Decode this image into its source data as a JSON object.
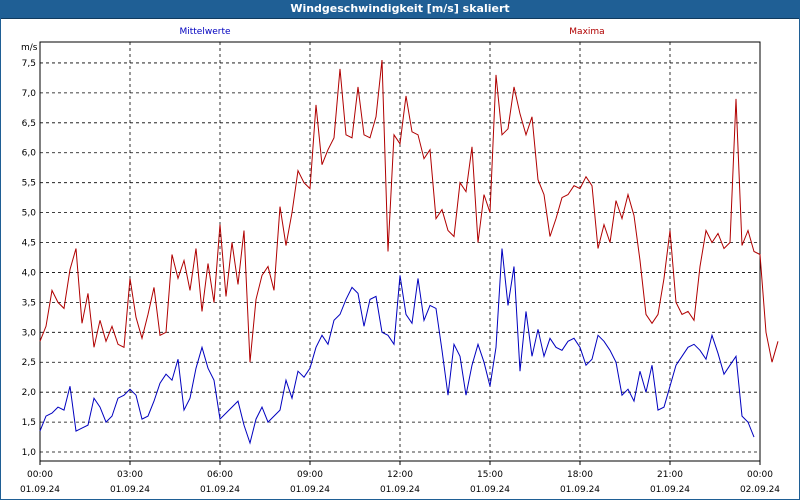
{
  "window": {
    "title": "Windgeschwindigkeit [m/s] skaliert"
  },
  "colors": {
    "mean": "#0000bf",
    "max": "#b00000",
    "titlebar": "#1f5f95"
  },
  "chart_data": {
    "type": "line",
    "title": "Windgeschwindigkeit [m/s] skaliert",
    "ylabel": "m/s",
    "ylim": [
      0.85,
      7.85
    ],
    "yticks": [
      1.0,
      1.5,
      2.0,
      2.5,
      3.0,
      3.5,
      4.0,
      4.5,
      5.0,
      5.5,
      6.0,
      6.5,
      7.0,
      7.5
    ],
    "ytick_labels": [
      "1,0",
      "1,5",
      "2,0",
      "2,5",
      "3,0",
      "3,5",
      "4,0",
      "4,5",
      "5,0",
      "5,5",
      "6,0",
      "6,5",
      "7,0",
      "7,5"
    ],
    "xlim_hours": [
      0,
      24
    ],
    "x_ticks": [
      {
        "h": 0,
        "time": "00:00",
        "date": "01.09.24"
      },
      {
        "h": 3,
        "time": "03:00",
        "date": "01.09.24"
      },
      {
        "h": 6,
        "time": "06:00",
        "date": "01.09.24"
      },
      {
        "h": 9,
        "time": "09:00",
        "date": "01.09.24"
      },
      {
        "h": 12,
        "time": "12:00",
        "date": "01.09.24"
      },
      {
        "h": 15,
        "time": "15:00",
        "date": "01.09.24"
      },
      {
        "h": 18,
        "time": "18:00",
        "date": "01.09.24"
      },
      {
        "h": 21,
        "time": "21:00",
        "date": "01.09.24"
      },
      {
        "h": 24,
        "time": "00:00",
        "date": "02.09.24"
      }
    ],
    "grid": true,
    "series": [
      {
        "name": "Mittelwerte",
        "points": [
          [
            0,
            1.35
          ],
          [
            0.2,
            1.6
          ],
          [
            0.4,
            1.65
          ],
          [
            0.6,
            1.75
          ],
          [
            0.8,
            1.7
          ],
          [
            1.0,
            2.1
          ],
          [
            1.2,
            1.35
          ],
          [
            1.4,
            1.4
          ],
          [
            1.6,
            1.45
          ],
          [
            1.8,
            1.9
          ],
          [
            2.0,
            1.75
          ],
          [
            2.2,
            1.5
          ],
          [
            2.4,
            1.6
          ],
          [
            2.6,
            1.9
          ],
          [
            2.8,
            1.95
          ],
          [
            3.0,
            2.05
          ],
          [
            3.2,
            1.95
          ],
          [
            3.4,
            1.55
          ],
          [
            3.6,
            1.6
          ],
          [
            3.8,
            1.85
          ],
          [
            4.0,
            2.15
          ],
          [
            4.2,
            2.3
          ],
          [
            4.4,
            2.2
          ],
          [
            4.6,
            2.55
          ],
          [
            4.8,
            1.7
          ],
          [
            5.0,
            1.9
          ],
          [
            5.2,
            2.4
          ],
          [
            5.4,
            2.75
          ],
          [
            5.6,
            2.4
          ],
          [
            5.8,
            2.2
          ],
          [
            6.0,
            1.55
          ],
          [
            6.2,
            1.65
          ],
          [
            6.4,
            1.75
          ],
          [
            6.6,
            1.85
          ],
          [
            6.8,
            1.45
          ],
          [
            7.0,
            1.15
          ],
          [
            7.2,
            1.55
          ],
          [
            7.4,
            1.75
          ],
          [
            7.6,
            1.5
          ],
          [
            7.8,
            1.6
          ],
          [
            8.0,
            1.7
          ],
          [
            8.2,
            2.2
          ],
          [
            8.4,
            1.9
          ],
          [
            8.6,
            2.35
          ],
          [
            8.8,
            2.25
          ],
          [
            9.0,
            2.4
          ],
          [
            9.2,
            2.75
          ],
          [
            9.4,
            2.95
          ],
          [
            9.6,
            2.8
          ],
          [
            9.8,
            3.2
          ],
          [
            10.0,
            3.3
          ],
          [
            10.2,
            3.55
          ],
          [
            10.4,
            3.75
          ],
          [
            10.6,
            3.65
          ],
          [
            10.8,
            3.1
          ],
          [
            11.0,
            3.55
          ],
          [
            11.2,
            3.6
          ],
          [
            11.4,
            3.0
          ],
          [
            11.6,
            2.95
          ],
          [
            11.8,
            2.8
          ],
          [
            12.0,
            3.95
          ],
          [
            12.2,
            3.3
          ],
          [
            12.4,
            3.15
          ],
          [
            12.6,
            3.9
          ],
          [
            12.8,
            3.2
          ],
          [
            13.0,
            3.45
          ],
          [
            13.2,
            3.4
          ],
          [
            13.4,
            2.7
          ],
          [
            13.6,
            1.95
          ],
          [
            13.8,
            2.8
          ],
          [
            14.0,
            2.6
          ],
          [
            14.2,
            1.95
          ],
          [
            14.4,
            2.45
          ],
          [
            14.6,
            2.8
          ],
          [
            14.8,
            2.5
          ],
          [
            15.0,
            2.1
          ],
          [
            15.2,
            2.75
          ],
          [
            15.4,
            4.4
          ],
          [
            15.6,
            3.45
          ],
          [
            15.8,
            4.1
          ],
          [
            16.0,
            2.35
          ],
          [
            16.2,
            3.35
          ],
          [
            16.4,
            2.6
          ],
          [
            16.6,
            3.05
          ],
          [
            16.8,
            2.6
          ],
          [
            17.0,
            2.9
          ],
          [
            17.2,
            2.75
          ],
          [
            17.4,
            2.7
          ],
          [
            17.6,
            2.85
          ],
          [
            17.8,
            2.9
          ],
          [
            18.0,
            2.75
          ],
          [
            18.2,
            2.45
          ],
          [
            18.4,
            2.55
          ],
          [
            18.6,
            2.95
          ],
          [
            18.8,
            2.85
          ],
          [
            19.0,
            2.7
          ],
          [
            19.2,
            2.5
          ],
          [
            19.4,
            1.95
          ],
          [
            19.6,
            2.05
          ],
          [
            19.8,
            1.85
          ],
          [
            20.0,
            2.35
          ],
          [
            20.2,
            2.0
          ],
          [
            20.4,
            2.45
          ],
          [
            20.6,
            1.7
          ],
          [
            20.8,
            1.75
          ],
          [
            21.0,
            2.1
          ],
          [
            21.2,
            2.45
          ],
          [
            21.4,
            2.6
          ],
          [
            21.6,
            2.75
          ],
          [
            21.8,
            2.8
          ],
          [
            22.0,
            2.7
          ],
          [
            22.2,
            2.55
          ],
          [
            22.4,
            2.95
          ],
          [
            22.6,
            2.65
          ],
          [
            22.8,
            2.3
          ],
          [
            23.0,
            2.45
          ],
          [
            23.2,
            2.6
          ],
          [
            23.4,
            1.6
          ],
          [
            23.6,
            1.5
          ],
          [
            23.8,
            1.25
          ]
        ]
      },
      {
        "name": "Maxima",
        "points": [
          [
            0,
            2.85
          ],
          [
            0.2,
            3.1
          ],
          [
            0.4,
            3.7
          ],
          [
            0.6,
            3.5
          ],
          [
            0.8,
            3.4
          ],
          [
            1.0,
            4.05
          ],
          [
            1.2,
            4.4
          ],
          [
            1.4,
            3.15
          ],
          [
            1.6,
            3.65
          ],
          [
            1.8,
            2.75
          ],
          [
            2.0,
            3.2
          ],
          [
            2.2,
            2.85
          ],
          [
            2.4,
            3.1
          ],
          [
            2.6,
            2.8
          ],
          [
            2.8,
            2.75
          ],
          [
            3.0,
            3.9
          ],
          [
            3.2,
            3.25
          ],
          [
            3.4,
            2.9
          ],
          [
            3.6,
            3.3
          ],
          [
            3.8,
            3.75
          ],
          [
            4.0,
            2.95
          ],
          [
            4.2,
            3.0
          ],
          [
            4.4,
            4.3
          ],
          [
            4.6,
            3.9
          ],
          [
            4.8,
            4.2
          ],
          [
            5.0,
            3.7
          ],
          [
            5.2,
            4.4
          ],
          [
            5.4,
            3.35
          ],
          [
            5.6,
            4.15
          ],
          [
            5.8,
            3.5
          ],
          [
            6.0,
            4.8
          ],
          [
            6.2,
            3.6
          ],
          [
            6.4,
            4.5
          ],
          [
            6.6,
            3.8
          ],
          [
            6.8,
            4.7
          ],
          [
            7.0,
            2.5
          ],
          [
            7.2,
            3.55
          ],
          [
            7.4,
            3.95
          ],
          [
            7.6,
            4.1
          ],
          [
            7.8,
            3.7
          ],
          [
            8.0,
            5.1
          ],
          [
            8.2,
            4.45
          ],
          [
            8.4,
            5.0
          ],
          [
            8.6,
            5.7
          ],
          [
            8.8,
            5.5
          ],
          [
            9.0,
            5.4
          ],
          [
            9.2,
            6.8
          ],
          [
            9.4,
            5.8
          ],
          [
            9.6,
            6.05
          ],
          [
            9.8,
            6.25
          ],
          [
            10.0,
            7.4
          ],
          [
            10.2,
            6.3
          ],
          [
            10.4,
            6.25
          ],
          [
            10.6,
            7.1
          ],
          [
            10.8,
            6.3
          ],
          [
            11.0,
            6.25
          ],
          [
            11.2,
            6.6
          ],
          [
            11.4,
            7.55
          ],
          [
            11.6,
            4.35
          ],
          [
            11.8,
            6.3
          ],
          [
            12.0,
            6.15
          ],
          [
            12.2,
            6.95
          ],
          [
            12.4,
            6.35
          ],
          [
            12.6,
            6.3
          ],
          [
            12.8,
            5.9
          ],
          [
            13.0,
            6.05
          ],
          [
            13.2,
            4.9
          ],
          [
            13.4,
            5.05
          ],
          [
            13.6,
            4.7
          ],
          [
            13.8,
            4.6
          ],
          [
            14.0,
            5.5
          ],
          [
            14.2,
            5.35
          ],
          [
            14.4,
            6.1
          ],
          [
            14.6,
            4.5
          ],
          [
            14.8,
            5.3
          ],
          [
            15.0,
            5.0
          ],
          [
            15.2,
            7.3
          ],
          [
            15.4,
            6.3
          ],
          [
            15.6,
            6.4
          ],
          [
            15.8,
            7.1
          ],
          [
            16.0,
            6.65
          ],
          [
            16.2,
            6.3
          ],
          [
            16.4,
            6.6
          ],
          [
            16.6,
            5.55
          ],
          [
            16.8,
            5.3
          ],
          [
            17.0,
            4.6
          ],
          [
            17.2,
            4.9
          ],
          [
            17.4,
            5.25
          ],
          [
            17.6,
            5.3
          ],
          [
            17.8,
            5.45
          ],
          [
            18.0,
            5.4
          ],
          [
            18.2,
            5.6
          ],
          [
            18.4,
            5.45
          ],
          [
            18.6,
            4.4
          ],
          [
            18.8,
            4.8
          ],
          [
            19.0,
            4.5
          ],
          [
            19.2,
            5.2
          ],
          [
            19.4,
            4.9
          ],
          [
            19.6,
            5.3
          ],
          [
            19.8,
            4.95
          ],
          [
            20.0,
            4.2
          ],
          [
            20.2,
            3.3
          ],
          [
            20.4,
            3.15
          ],
          [
            20.6,
            3.3
          ],
          [
            20.8,
            3.9
          ],
          [
            21.0,
            4.7
          ],
          [
            21.2,
            3.5
          ],
          [
            21.4,
            3.3
          ],
          [
            21.6,
            3.35
          ],
          [
            21.8,
            3.2
          ],
          [
            22.0,
            4.1
          ],
          [
            22.2,
            4.7
          ],
          [
            22.4,
            4.5
          ],
          [
            22.6,
            4.65
          ],
          [
            22.8,
            4.4
          ],
          [
            23.0,
            4.5
          ],
          [
            23.2,
            6.9
          ],
          [
            23.4,
            4.45
          ],
          [
            23.6,
            4.7
          ],
          [
            23.8,
            4.35
          ],
          [
            24.0,
            4.3
          ],
          [
            24.2,
            3.0
          ],
          [
            24.4,
            2.5
          ],
          [
            24.6,
            2.85
          ]
        ]
      }
    ]
  }
}
